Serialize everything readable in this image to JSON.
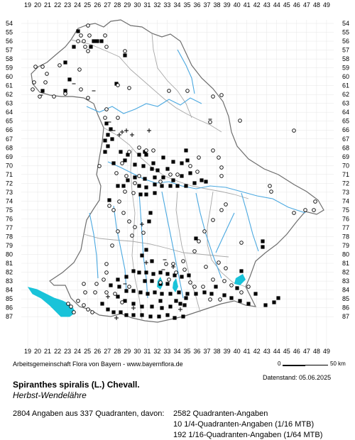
{
  "map": {
    "x_ticks": [
      "19",
      "20",
      "21",
      "22",
      "23",
      "24",
      "25",
      "26",
      "27",
      "28",
      "29",
      "30",
      "31",
      "32",
      "33",
      "34",
      "35",
      "36",
      "37",
      "38",
      "39",
      "40",
      "41",
      "42",
      "43",
      "44",
      "45",
      "46",
      "47",
      "48",
      "49"
    ],
    "y_ticks": [
      "54",
      "55",
      "56",
      "57",
      "58",
      "59",
      "60",
      "61",
      "62",
      "63",
      "64",
      "65",
      "66",
      "67",
      "68",
      "69",
      "70",
      "71",
      "72",
      "73",
      "74",
      "75",
      "76",
      "77",
      "78",
      "79",
      "80",
      "81",
      "82",
      "83",
      "84",
      "85",
      "86",
      "87"
    ],
    "colors": {
      "border": "#6e6e6e",
      "district": "#a8a8a8",
      "river": "#4aa8e0",
      "lake": "#19c3d9",
      "grid": "#bfbfbf"
    },
    "legend_symbols": [
      "filled-square",
      "open-circle",
      "filled-circle",
      "plus",
      "minus"
    ]
  },
  "footer": {
    "credit": "Arbeitsgemeinschaft Flora von Bayern - www.bayernflora.de",
    "scale_start": "0",
    "scale_end": "50 km",
    "date": "Datenstand: 05.06.2025",
    "species_name": "Spiranthes spiralis (L.) Chevall.",
    "common_name": "Herbst-Wendelähre",
    "count_summary": "2804 Angaben aus 337 Quadranten, davon:",
    "stat_quadrant": "2582 Quadranten-Angaben",
    "stat_16": "10 1/4-Quadranten-Angaben (1/16 MTB)",
    "stat_64": "192 1/16-Quadranten-Angaben (1/64 MTB)"
  }
}
